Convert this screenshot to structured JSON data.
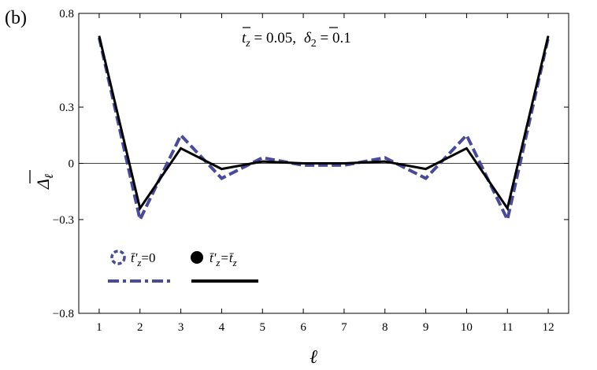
{
  "chart_data": {
    "type": "line",
    "panel_label": "(b)",
    "annotation": {
      "t_symbol": "t",
      "t_sub": "z",
      "t_value": " = 0.05,",
      "delta_symbol": "δ",
      "delta_sub": "2",
      "delta_value": " = 0.1"
    },
    "xlabel": "ℓ",
    "ylabel_symbol": "Δ",
    "ylabel_sub": "ℓ",
    "x": [
      1,
      2,
      3,
      4,
      5,
      6,
      7,
      8,
      9,
      10,
      11,
      12
    ],
    "xlim": [
      0.5,
      12.5
    ],
    "ylim": [
      -0.8,
      0.8
    ],
    "x_ticks": [
      1,
      2,
      3,
      4,
      5,
      6,
      7,
      8,
      9,
      10,
      11,
      12
    ],
    "y_ticks": [
      {
        "value": 0.8,
        "label": "0.8"
      },
      {
        "value": 0.3,
        "label": "0.3"
      },
      {
        "value": 0,
        "label": "0"
      },
      {
        "value": -0.3,
        "label": "−0.3"
      },
      {
        "value": -0.8,
        "label": "−0.8"
      }
    ],
    "zero_line": true,
    "grid": false,
    "legend_position": "bottom-left",
    "series": [
      {
        "name_main": "t̄'",
        "name_sub": "z",
        "name_rest": "=0",
        "style": "dashed",
        "color": "#4a4a9a",
        "values": [
          0.67,
          -0.3,
          0.15,
          -0.08,
          0.03,
          -0.01,
          -0.01,
          0.03,
          -0.08,
          0.15,
          -0.3,
          0.67
        ]
      },
      {
        "name_main": "t̄'",
        "name_sub": "z",
        "name_rest": "=t̄",
        "name_sub2": "z",
        "style": "solid",
        "color": "#000000",
        "values": [
          0.68,
          -0.24,
          0.08,
          -0.03,
          0.01,
          0.0,
          0.0,
          0.01,
          -0.03,
          0.08,
          -0.24,
          0.68
        ]
      }
    ]
  }
}
